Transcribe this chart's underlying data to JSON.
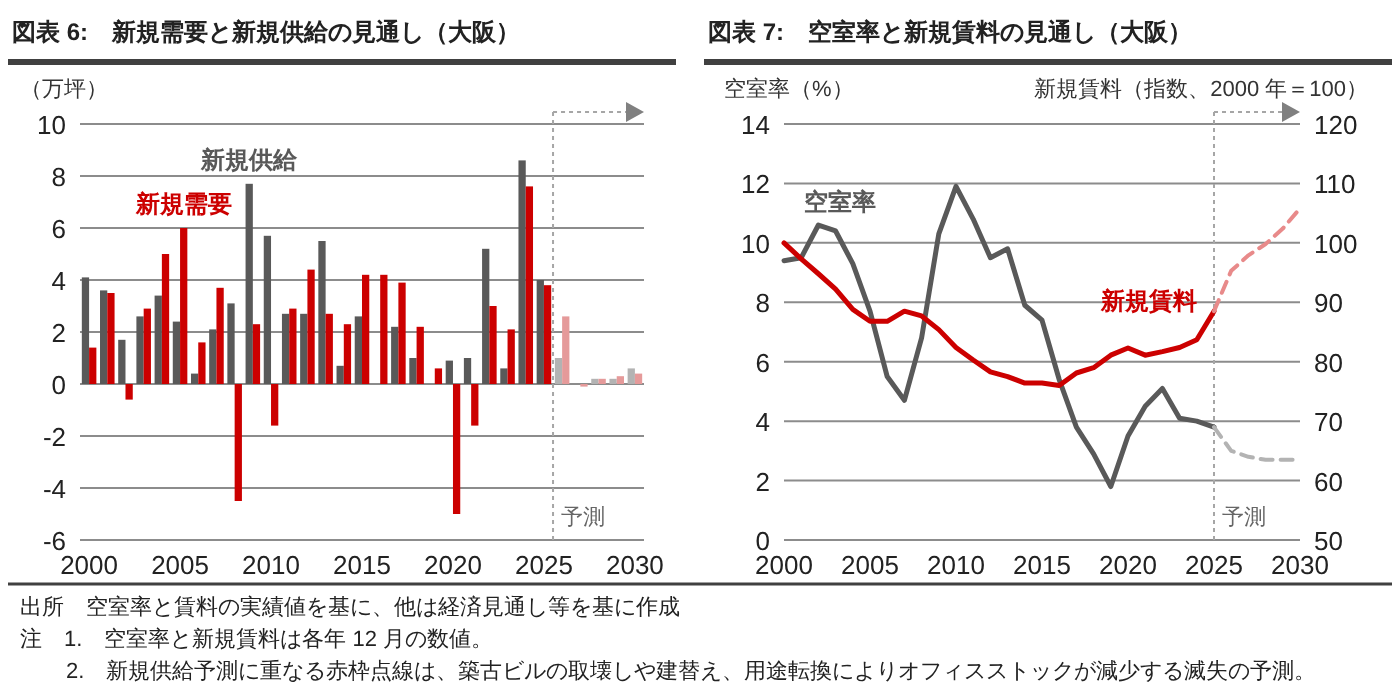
{
  "chart_data": [
    {
      "type": "bar",
      "title": "図表 6:　新規需要と新規供給の見通し（大阪）",
      "ylabel": "（万坪）",
      "x": [
        2000,
        2001,
        2002,
        2003,
        2004,
        2005,
        2006,
        2007,
        2008,
        2009,
        2010,
        2011,
        2012,
        2013,
        2014,
        2015,
        2016,
        2017,
        2018,
        2019,
        2020,
        2021,
        2022,
        2023,
        2024,
        2025,
        2026,
        2027,
        2028,
        2029,
        2030
      ],
      "xlim": [
        1999.5,
        2030.5
      ],
      "xticks": [
        2000,
        2005,
        2010,
        2015,
        2020,
        2025,
        2030
      ],
      "ylim": [
        -6,
        10
      ],
      "yticks": [
        -6,
        -4,
        -2,
        0,
        2,
        4,
        6,
        8,
        10
      ],
      "grid": "y",
      "series": [
        {
          "name": "新規供給",
          "values": [
            4.1,
            3.6,
            1.7,
            2.6,
            3.4,
            2.4,
            0.4,
            2.1,
            3.1,
            7.7,
            5.7,
            2.7,
            2.7,
            5.5,
            0.7,
            2.6,
            null,
            2.2,
            1.0,
            null,
            0.9,
            1.0,
            5.2,
            0.6,
            8.6,
            4.0,
            1.0,
            null,
            0.2,
            0.2,
            0.6
          ],
          "colors": [
            "#595959",
            "#595959",
            "#595959",
            "#595959",
            "#595959",
            "#595959",
            "#595959",
            "#595959",
            "#595959",
            "#595959",
            "#595959",
            "#595959",
            "#595959",
            "#595959",
            "#595959",
            "#595959",
            null,
            "#595959",
            "#595959",
            null,
            "#595959",
            "#595959",
            "#595959",
            "#595959",
            "#595959",
            "#595959",
            "#b3b3b3",
            null,
            "#b3b3b3",
            "#b3b3b3",
            "#b3b3b3"
          ]
        },
        {
          "name": "新規需要",
          "values": [
            1.4,
            3.5,
            -0.6,
            2.9,
            5.0,
            6.0,
            1.6,
            3.7,
            -4.5,
            2.3,
            -1.6,
            2.9,
            4.4,
            2.7,
            2.3,
            4.2,
            4.2,
            3.9,
            2.2,
            0.6,
            -5.0,
            -1.6,
            3.0,
            2.1,
            7.6,
            3.8,
            2.6,
            -0.1,
            0.2,
            0.3,
            0.4
          ],
          "colors": [
            "#cc0000",
            "#cc0000",
            "#cc0000",
            "#cc0000",
            "#cc0000",
            "#cc0000",
            "#cc0000",
            "#cc0000",
            "#cc0000",
            "#cc0000",
            "#cc0000",
            "#cc0000",
            "#cc0000",
            "#cc0000",
            "#cc0000",
            "#cc0000",
            "#cc0000",
            "#cc0000",
            "#cc0000",
            "#cc0000",
            "#cc0000",
            "#cc0000",
            "#cc0000",
            "#cc0000",
            "#cc0000",
            "#cc0000",
            "#e59a9a",
            "#e59a9a",
            "#e59a9a",
            "#e59a9a",
            "#e59a9a"
          ]
        }
      ],
      "ref_lines": [
        {
          "axis": "x",
          "value": 2025.5,
          "label": "予測",
          "color": "#a6a6a6",
          "line_style": "dotted"
        }
      ],
      "annotations": [
        "出所　空室率と賃料の実績値を基に、他は経済見通し等を基に作成",
        "注　1.　空室率と新規賃料は各年 12 月の数値。",
        "2.　新規供給予測に重なる赤枠点線は、築古ビルの取壊しや建替え、用途転換によりオフィスストックが減少する滅失の予測。"
      ]
    },
    {
      "type": "line",
      "title": "図表 7:　空室率と新規賃料の見通し（大阪）",
      "ylabel": "空室率（%）",
      "y2label": "新規賃料（指数、2000 年＝100）",
      "x": [
        2000,
        2001,
        2002,
        2003,
        2004,
        2005,
        2006,
        2007,
        2008,
        2009,
        2010,
        2011,
        2012,
        2013,
        2014,
        2015,
        2016,
        2017,
        2018,
        2019,
        2020,
        2021,
        2022,
        2023,
        2024,
        2025
      ],
      "xlim": [
        2000,
        2030
      ],
      "xticks": [
        2000,
        2005,
        2010,
        2015,
        2020,
        2025,
        2030
      ],
      "ylim": [
        0,
        14
      ],
      "yticks": [
        0,
        2,
        4,
        6,
        8,
        10,
        12,
        14
      ],
      "y2lim": [
        50,
        120
      ],
      "y2ticks": [
        50,
        60,
        70,
        80,
        90,
        100,
        110,
        120
      ],
      "grid": "y",
      "series": [
        {
          "name": "空室率",
          "color": "#595959",
          "values": [
            9.4,
            9.5,
            10.6,
            10.4,
            9.3,
            7.7,
            5.5,
            4.7,
            6.8,
            10.3,
            11.9,
            10.8,
            9.5,
            9.8,
            7.9,
            7.4,
            5.4,
            3.8,
            2.9,
            1.8,
            3.5,
            4.5,
            5.1,
            4.1,
            4.0,
            3.8
          ]
        },
        {
          "color": "#b3b3b3",
          "line_style": "dashed",
          "x": [
            2025,
            2026,
            2027,
            2028,
            2029,
            2030
          ],
          "values": [
            3.8,
            3.0,
            2.8,
            2.7,
            2.7,
            2.7
          ]
        },
        {
          "name": "新規賃料",
          "color": "#cc0000",
          "axis": "y2",
          "values": [
            100,
            97.3,
            94.8,
            92.2,
            88.8,
            86.8,
            86.8,
            88.5,
            87.7,
            85.4,
            82.4,
            80.3,
            78.3,
            77.5,
            76.4,
            76.4,
            76.0,
            78.1,
            79.0,
            81.1,
            82.3,
            81.1,
            81.7,
            82.4,
            83.7,
            88.5
          ]
        },
        {
          "color": "#e88a8a",
          "axis": "y2",
          "line_style": "dashed",
          "x": [
            2025,
            2026,
            2027,
            2028,
            2029,
            2030
          ],
          "values": [
            88.5,
            95.3,
            97.9,
            99.8,
            102.4,
            105.8
          ]
        }
      ],
      "ref_lines": [
        {
          "axis": "x",
          "value": 2025,
          "label": "予測",
          "color": "#a6a6a6",
          "line_style": "dotted"
        }
      ]
    }
  ]
}
